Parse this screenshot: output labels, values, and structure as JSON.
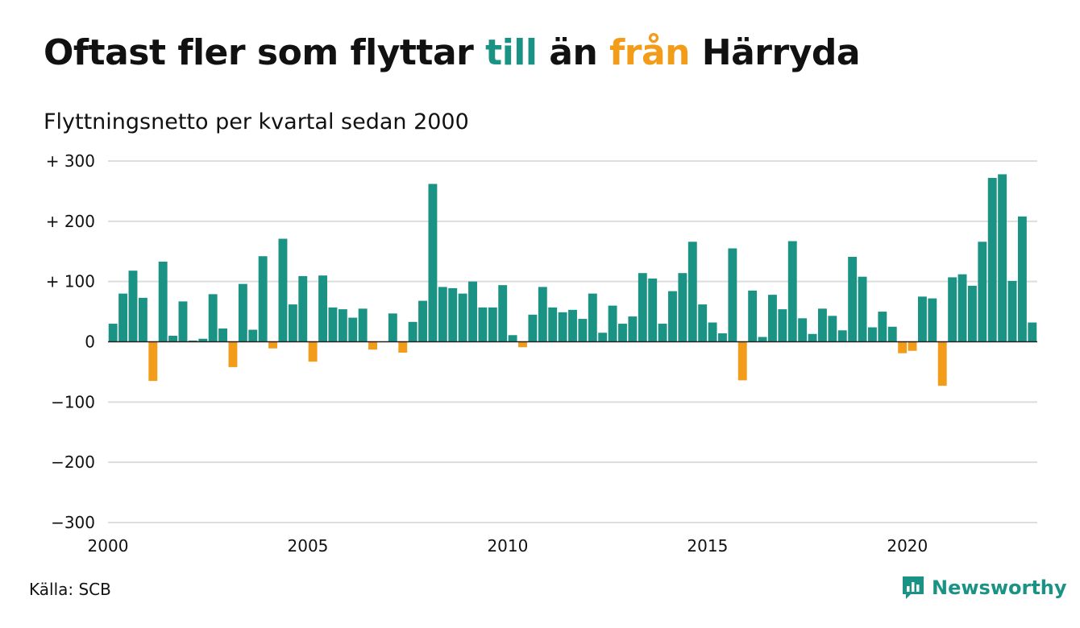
{
  "title": {
    "part1": "Oftast fler som flyttar ",
    "till": "till",
    "part2": " än ",
    "fran": "från",
    "part3": " Härryda"
  },
  "subtitle": "Flyttningsnetto per kvartal sedan 2000",
  "source": "Källa: SCB",
  "brand": "Newsworthy",
  "colors": {
    "positive": "#1a9385",
    "negative": "#f39c1a",
    "grid": "#dddddd",
    "zero_line": "#222222",
    "text": "#111111"
  },
  "chart_data": {
    "type": "bar",
    "title": "Oftast fler som flyttar till än från Härryda",
    "subtitle": "Flyttningsnetto per kvartal sedan 2000",
    "x_ticks": [
      2000,
      2005,
      2010,
      2015,
      2020
    ],
    "y_ticks": [
      {
        "value": 300,
        "label": "+ 300"
      },
      {
        "value": 200,
        "label": "+ 200"
      },
      {
        "value": 100,
        "label": "+ 100"
      },
      {
        "value": 0,
        "label": "0"
      },
      {
        "value": -100,
        "label": "−100"
      },
      {
        "value": -200,
        "label": "−200"
      },
      {
        "value": -300,
        "label": "−300"
      }
    ],
    "ylim": [
      -300,
      300
    ],
    "xlim": [
      2000,
      2023.25
    ],
    "start_year": 2000,
    "grid": true,
    "values": [
      30,
      80,
      118,
      73,
      -65,
      133,
      10,
      67,
      2,
      5,
      79,
      22,
      -42,
      96,
      20,
      142,
      -11,
      171,
      62,
      109,
      -33,
      110,
      57,
      54,
      40,
      55,
      -13,
      0,
      47,
      -18,
      33,
      68,
      262,
      91,
      89,
      80,
      100,
      57,
      57,
      94,
      11,
      -9,
      45,
      91,
      57,
      49,
      53,
      38,
      80,
      15,
      60,
      30,
      42,
      114,
      105,
      30,
      84,
      114,
      166,
      62,
      32,
      14,
      155,
      -64,
      85,
      8,
      78,
      54,
      167,
      39,
      13,
      55,
      43,
      19,
      141,
      108,
      24,
      50,
      25,
      -19,
      -15,
      75,
      72,
      -73,
      107,
      112,
      93,
      166,
      272,
      278,
      101,
      208,
      32
    ]
  }
}
